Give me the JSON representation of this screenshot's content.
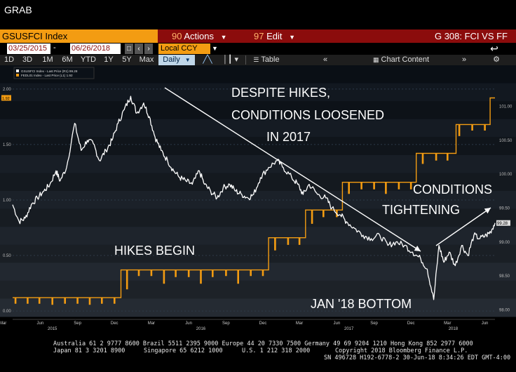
{
  "app": {
    "title": "GRAB"
  },
  "header": {
    "ticker": "GSUSFCI Index",
    "actions": {
      "num": "90",
      "label": "Actions"
    },
    "edit": {
      "num": "97",
      "label": "Edit"
    },
    "screen_title": "G 308: FCI VS FF"
  },
  "date_bar": {
    "start": "03/25/2015",
    "separator": "-",
    "end": "06/26/2018",
    "currency": "Local CCY"
  },
  "toolbar": {
    "periods": [
      "1D",
      "3D",
      "1M",
      "6M",
      "YTD",
      "1Y",
      "5Y",
      "Max"
    ],
    "frequency": "Daily",
    "table_label": "Table",
    "chart_content_label": "Chart Content"
  },
  "colors": {
    "fci_line": "#ffffff",
    "fedfunds_line": "#f39c12",
    "title_bar": "#8b0c0c",
    "ticker_bg": "#f39c12"
  },
  "chart_data": {
    "type": "line",
    "legend": [
      {
        "name": "GSUSFCI Index - Last Price (R1) 99.28",
        "color": "#ffffff"
      },
      {
        "name": "FEDL01 Index - Last Price (L1) 1.92",
        "color": "#f39c12"
      }
    ],
    "legend_placement": "top-left",
    "left_axis": {
      "ticks": [
        "2.00",
        "1.50",
        "1.00",
        "0.50",
        "0.00"
      ],
      "range": [
        -0.05,
        2.1
      ],
      "current_label": "1.92"
    },
    "right_axis": {
      "ticks": [
        "101.00",
        "100.50",
        "100.00",
        "99.50",
        "99.00",
        "98.50",
        "98.00"
      ],
      "range": [
        97.9,
        101.42
      ],
      "current_label": "99.28"
    },
    "x_axis": {
      "range": [
        "2015-03-25",
        "2018-06-26"
      ],
      "month_ticks": [
        {
          "date": "2015-03-01",
          "label": "Mar"
        },
        {
          "date": "2015-06-01",
          "label": "Jun"
        },
        {
          "date": "2015-09-01",
          "label": "Sep"
        },
        {
          "date": "2015-12-01",
          "label": "Dec"
        },
        {
          "date": "2016-03-01",
          "label": "Mar"
        },
        {
          "date": "2016-06-01",
          "label": "Jun"
        },
        {
          "date": "2016-09-01",
          "label": "Sep"
        },
        {
          "date": "2016-12-01",
          "label": "Dec"
        },
        {
          "date": "2017-03-01",
          "label": "Mar"
        },
        {
          "date": "2017-06-01",
          "label": "Jun"
        },
        {
          "date": "2017-09-01",
          "label": "Sep"
        },
        {
          "date": "2017-12-01",
          "label": "Dec"
        },
        {
          "date": "2018-03-01",
          "label": "Mar"
        },
        {
          "date": "2018-06-01",
          "label": "Jun"
        }
      ],
      "year_labels": [
        {
          "date": "2015-07-01",
          "label": "2015"
        },
        {
          "date": "2016-07-01",
          "label": "2016"
        },
        {
          "date": "2017-07-01",
          "label": "2017"
        },
        {
          "date": "2018-03-15",
          "label": "2018"
        }
      ]
    },
    "series": [
      {
        "name": "GSUSFCI Index - Last Price (R1) 99.28",
        "axis": "right",
        "color": "#ffffff",
        "points": [
          [
            "2015-03-25",
            99.55
          ],
          [
            "2015-04-10",
            99.3
          ],
          [
            "2015-04-25",
            99.35
          ],
          [
            "2015-05-10",
            99.55
          ],
          [
            "2015-05-25",
            99.65
          ],
          [
            "2015-06-10",
            99.75
          ],
          [
            "2015-06-25",
            99.85
          ],
          [
            "2015-07-10",
            100.05
          ],
          [
            "2015-07-20",
            99.9
          ],
          [
            "2015-08-05",
            100.1
          ],
          [
            "2015-08-25",
            100.75
          ],
          [
            "2015-09-10",
            100.35
          ],
          [
            "2015-09-25",
            100.5
          ],
          [
            "2015-10-10",
            100.45
          ],
          [
            "2015-10-25",
            100.2
          ],
          [
            "2015-11-10",
            100.35
          ],
          [
            "2015-11-25",
            100.5
          ],
          [
            "2015-12-10",
            100.75
          ],
          [
            "2015-12-25",
            100.95
          ],
          [
            "2016-01-10",
            101.15
          ],
          [
            "2016-01-25",
            100.9
          ],
          [
            "2016-02-11",
            101.05
          ],
          [
            "2016-02-25",
            100.85
          ],
          [
            "2016-03-10",
            100.55
          ],
          [
            "2016-03-25",
            100.35
          ],
          [
            "2016-04-10",
            100.2
          ],
          [
            "2016-04-25",
            100.05
          ],
          [
            "2016-05-10",
            99.95
          ],
          [
            "2016-05-25",
            99.9
          ],
          [
            "2016-06-10",
            99.85
          ],
          [
            "2016-06-27",
            100.05
          ],
          [
            "2016-07-10",
            99.85
          ],
          [
            "2016-07-25",
            99.75
          ],
          [
            "2016-08-10",
            99.65
          ],
          [
            "2016-08-25",
            99.8
          ],
          [
            "2016-09-10",
            99.85
          ],
          [
            "2016-09-25",
            99.75
          ],
          [
            "2016-10-10",
            99.7
          ],
          [
            "2016-10-25",
            99.65
          ],
          [
            "2016-11-08",
            99.7
          ],
          [
            "2016-11-25",
            99.95
          ],
          [
            "2016-12-15",
            100.1
          ],
          [
            "2017-01-05",
            100.2
          ],
          [
            "2017-01-20",
            100.1
          ],
          [
            "2017-02-10",
            99.95
          ],
          [
            "2017-02-25",
            99.85
          ],
          [
            "2017-03-10",
            99.7
          ],
          [
            "2017-03-25",
            99.85
          ],
          [
            "2017-04-15",
            99.7
          ],
          [
            "2017-05-05",
            99.65
          ],
          [
            "2017-05-20",
            99.5
          ],
          [
            "2017-06-10",
            99.4
          ],
          [
            "2017-06-25",
            99.3
          ],
          [
            "2017-07-15",
            99.2
          ],
          [
            "2017-08-05",
            99.1
          ],
          [
            "2017-08-25",
            99.05
          ],
          [
            "2017-09-15",
            99.1
          ],
          [
            "2017-10-05",
            98.95
          ],
          [
            "2017-10-25",
            99.0
          ],
          [
            "2017-11-15",
            98.95
          ],
          [
            "2017-12-05",
            98.85
          ],
          [
            "2017-12-25",
            98.75
          ],
          [
            "2018-01-10",
            98.6
          ],
          [
            "2018-01-26",
            98.15
          ],
          [
            "2018-02-08",
            98.95
          ],
          [
            "2018-02-20",
            98.7
          ],
          [
            "2018-03-05",
            98.85
          ],
          [
            "2018-03-20",
            98.65
          ],
          [
            "2018-04-05",
            98.95
          ],
          [
            "2018-04-20",
            98.8
          ],
          [
            "2018-05-05",
            99.1
          ],
          [
            "2018-05-20",
            99.05
          ],
          [
            "2018-06-05",
            99.1
          ],
          [
            "2018-06-15",
            99.15
          ],
          [
            "2018-06-26",
            99.28
          ]
        ]
      },
      {
        "name": "FEDL01 Index - Last Price (L1) 1.92",
        "axis": "left",
        "color": "#f39c12",
        "steps": [
          [
            "2015-03-25",
            0.12
          ],
          [
            "2015-12-17",
            0.37
          ],
          [
            "2016-12-15",
            0.66
          ],
          [
            "2017-03-16",
            0.91
          ],
          [
            "2017-06-15",
            1.16
          ],
          [
            "2017-12-14",
            1.42
          ],
          [
            "2018-03-22",
            1.68
          ],
          [
            "2018-06-14",
            1.92
          ]
        ],
        "dips": [
          [
            "2015-03-31",
            0.07
          ],
          [
            "2015-04-30",
            0.07
          ],
          [
            "2015-05-29",
            0.07
          ],
          [
            "2015-06-30",
            0.06
          ],
          [
            "2015-07-31",
            0.07
          ],
          [
            "2015-08-31",
            0.07
          ],
          [
            "2015-09-30",
            0.06
          ],
          [
            "2015-10-30",
            0.07
          ],
          [
            "2015-11-30",
            0.07
          ],
          [
            "2015-12-31",
            0.2
          ],
          [
            "2016-01-29",
            0.32
          ],
          [
            "2016-02-29",
            0.32
          ],
          [
            "2016-03-31",
            0.25
          ],
          [
            "2016-04-29",
            0.31
          ],
          [
            "2016-05-31",
            0.31
          ],
          [
            "2016-06-30",
            0.25
          ],
          [
            "2016-07-29",
            0.31
          ],
          [
            "2016-08-31",
            0.32
          ],
          [
            "2016-09-30",
            0.25
          ],
          [
            "2016-10-31",
            0.32
          ],
          [
            "2016-11-30",
            0.32
          ],
          [
            "2016-12-30",
            0.55
          ],
          [
            "2017-01-31",
            0.6
          ],
          [
            "2017-02-28",
            0.6
          ],
          [
            "2017-03-31",
            0.79
          ],
          [
            "2017-04-28",
            0.85
          ],
          [
            "2017-05-31",
            0.85
          ],
          [
            "2017-06-30",
            1.06
          ],
          [
            "2017-07-31",
            1.1
          ],
          [
            "2017-08-31",
            1.1
          ],
          [
            "2017-09-29",
            1.06
          ],
          [
            "2017-10-31",
            1.1
          ],
          [
            "2017-11-30",
            1.1
          ],
          [
            "2017-12-29",
            1.33
          ],
          [
            "2018-01-31",
            1.36
          ],
          [
            "2018-02-28",
            1.36
          ],
          [
            "2018-03-29",
            1.58
          ],
          [
            "2018-04-30",
            1.63
          ],
          [
            "2018-05-31",
            1.63
          ]
        ]
      }
    ],
    "annotations": [
      "DESPITE HIKES,",
      "CONDITIONS LOOSENED",
      "IN 2017",
      "CONDITIONS",
      "TIGHTENING",
      "HIKES BEGIN",
      "JAN '18 BOTTOM"
    ]
  },
  "footer": {
    "line1": "Australia 61 2 9777 8600 Brazil 5511 2395 9000 Europe 44 20 7330 7500 Germany 49 69 9204 1210 Hong Kong 852 2977 6000",
    "line2a": "Japan 81 3 3201 8900",
    "line2b": "Singapore 65 6212 1000",
    "line2c": "U.S. 1 212 318 2000",
    "line2d": "Copyright 2018 Bloomberg Finance L.P.",
    "line3": "SN 496728 H192-6778-2 30-Jun-18  8:34:26 EDT  GMT-4:00"
  }
}
